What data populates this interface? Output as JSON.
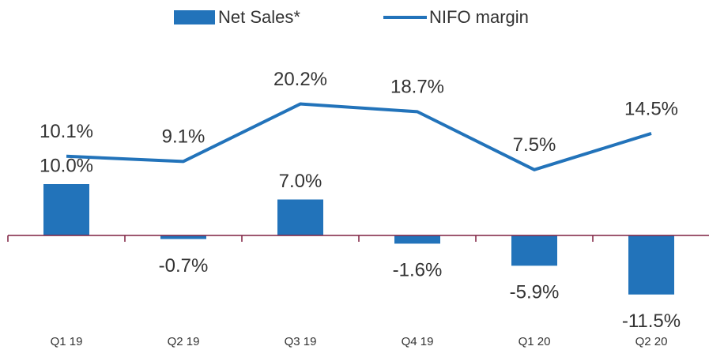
{
  "chart_data": {
    "type": "bar_line",
    "categories": [
      "Q1 19",
      "Q2 19",
      "Q3 19",
      "Q4 19",
      "Q1 20",
      "Q2 20"
    ],
    "series": [
      {
        "name": "Net Sales*",
        "type": "bar",
        "color": "#2273ba",
        "values": [
          10.0,
          -0.7,
          7.0,
          -1.6,
          -5.9,
          -11.5
        ],
        "value_labels": [
          "10.0%",
          "-0.7%",
          "7.0%",
          "-1.6%",
          "-5.9%",
          "-11.5%"
        ]
      },
      {
        "name": "NIFO margin",
        "type": "line",
        "axis": "y2",
        "color": "#2273ba",
        "values": [
          10.1,
          9.1,
          20.2,
          18.7,
          7.5,
          14.5
        ],
        "value_labels": [
          "10.1%",
          "9.1%",
          "20.2%",
          "18.7%",
          "7.5%",
          "14.5%"
        ]
      }
    ],
    "ylim": [
      -20,
      36
    ],
    "y2lim": [
      -25,
      30.5
    ],
    "legend": "top",
    "axis_color": "#7f2040"
  }
}
